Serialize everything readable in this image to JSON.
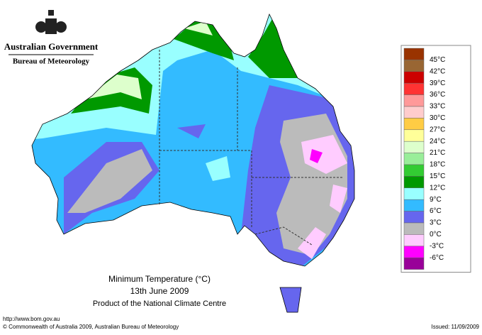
{
  "header": {
    "government": "Australian Government",
    "agency": "Bureau of Meteorology"
  },
  "map": {
    "title": "Minimum Temperature (°C)",
    "date": "13th June 2009",
    "product": "Product of the National Climate Centre"
  },
  "legend": {
    "labels": [
      "45°C",
      "42°C",
      "39°C",
      "36°C",
      "33°C",
      "30°C",
      "27°C",
      "24°C",
      "21°C",
      "18°C",
      "15°C",
      "12°C",
      "9°C",
      "6°C",
      "3°C",
      "0°C",
      "-3°C",
      "-6°C"
    ],
    "colors": [
      "#993300",
      "#996633",
      "#cc0000",
      "#ff3333",
      "#ff9999",
      "#ffcccc",
      "#ffcc44",
      "#ffff99",
      "#ddffcc",
      "#99ee99",
      "#33cc33",
      "#009900",
      "#99ffff",
      "#33bbff",
      "#6666ee",
      "#bbbbbb",
      "#ffccff",
      "#ff00ff",
      "#990099"
    ]
  },
  "footer": {
    "url": "http://www.bom.gov.au",
    "copyright": "© Commonwealth of Australia 2009, Australian Bureau of Meteorology",
    "issued": "Issued: 11/09/2009"
  }
}
